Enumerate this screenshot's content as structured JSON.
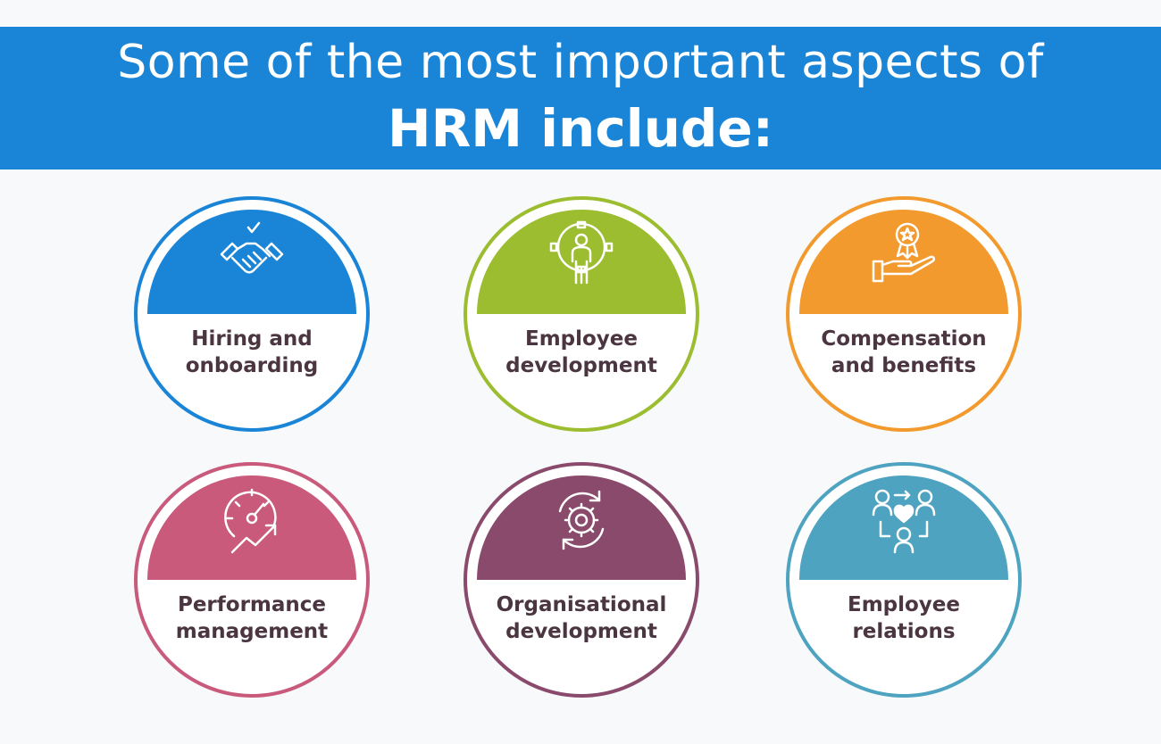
{
  "header": {
    "line1": "Some of the most important aspects of",
    "line2": "HRM include:",
    "background": "#1a84d6"
  },
  "items": [
    {
      "label_line1": "Hiring and",
      "label_line2": "onboarding",
      "color": "#1a84d6",
      "icon": "handshake-icon"
    },
    {
      "label_line1": "Employee",
      "label_line2": "development",
      "color": "#9bbd2f",
      "icon": "person-gear-icon"
    },
    {
      "label_line1": "Compensation",
      "label_line2": "and benefits",
      "color": "#f29a2e",
      "icon": "award-hand-icon"
    },
    {
      "label_line1": "Performance",
      "label_line2": "management",
      "color": "#c95a7c",
      "icon": "speedometer-icon"
    },
    {
      "label_line1": "Organisational",
      "label_line2": "development",
      "color": "#8a4a6c",
      "icon": "cycle-gear-icon"
    },
    {
      "label_line1": "Employee",
      "label_line2": "relations",
      "color": "#4ea3c0",
      "icon": "people-heart-icon"
    }
  ]
}
